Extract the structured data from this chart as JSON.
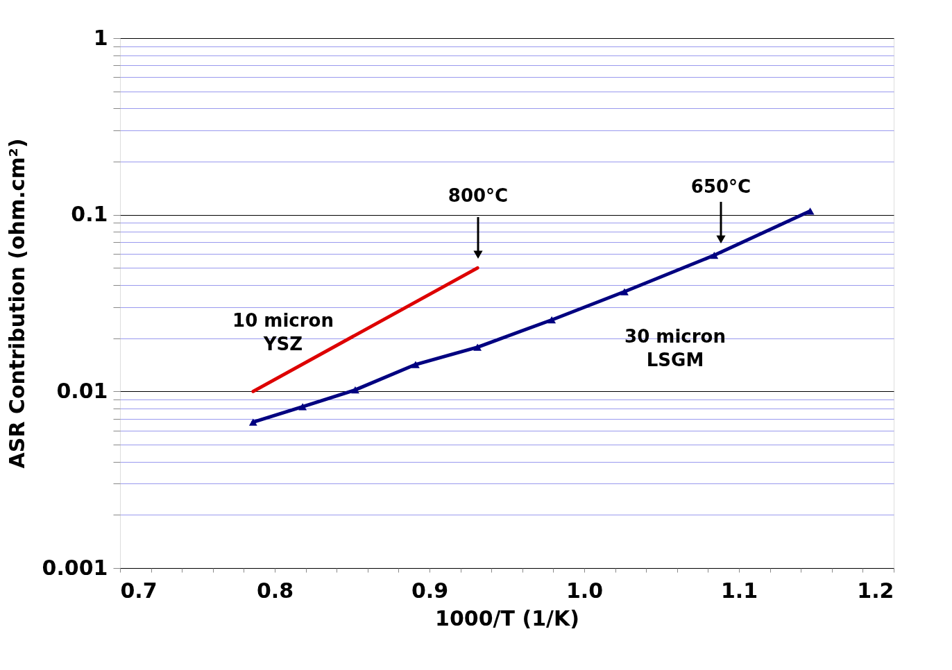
{
  "chart_data": {
    "type": "line",
    "xlabel": "1000/T (1/K)",
    "ylabel": "ASR Contribution (ohm.cm²)",
    "log": "y",
    "grid": "y",
    "legend": false,
    "xlim": [
      0.7,
      1.2
    ],
    "xticks": [
      0.7,
      {
        "value": 0.72,
        "label": null
      },
      {
        "value": 0.74,
        "label": null
      },
      {
        "value": 0.76,
        "label": null
      },
      {
        "value": 0.78,
        "label": null
      },
      0.8,
      {
        "value": 0.82,
        "label": null
      },
      {
        "value": 0.84,
        "label": null
      },
      {
        "value": 0.86,
        "label": null
      },
      {
        "value": 0.88,
        "label": null
      },
      0.9,
      {
        "value": 0.92,
        "label": null
      },
      {
        "value": 0.94,
        "label": null
      },
      {
        "value": 0.96,
        "label": null
      },
      {
        "value": 0.98,
        "label": null
      },
      {
        "value": 1.0,
        "label": "1.0"
      },
      {
        "value": 1.02,
        "label": null
      },
      {
        "value": 1.04,
        "label": null
      },
      {
        "value": 1.06,
        "label": null
      },
      {
        "value": 1.08,
        "label": null
      },
      1.1,
      {
        "value": 1.12,
        "label": null
      },
      {
        "value": 1.14,
        "label": null
      },
      {
        "value": 1.16,
        "label": null
      },
      {
        "value": 1.18,
        "label": null
      },
      1.2
    ],
    "ylim": [
      0.001,
      1
    ],
    "yticks": [
      0.001,
      {
        "value": 0.002,
        "label": null
      },
      {
        "value": 0.003,
        "label": null
      },
      {
        "value": 0.004,
        "label": null
      },
      {
        "value": 0.005,
        "label": null
      },
      {
        "value": 0.006,
        "label": null
      },
      {
        "value": 0.007,
        "label": null
      },
      {
        "value": 0.008,
        "label": null
      },
      {
        "value": 0.009,
        "label": null
      },
      0.01,
      {
        "value": 0.02,
        "label": null
      },
      {
        "value": 0.03,
        "label": null
      },
      {
        "value": 0.04,
        "label": null
      },
      {
        "value": 0.05,
        "label": null
      },
      {
        "value": 0.06,
        "label": null
      },
      {
        "value": 0.07,
        "label": null
      },
      {
        "value": 0.08,
        "label": null
      },
      {
        "value": 0.09,
        "label": null
      },
      0.1,
      {
        "value": 0.2,
        "label": null
      },
      {
        "value": 0.3,
        "label": null
      },
      {
        "value": 0.4,
        "label": null
      },
      {
        "value": 0.5,
        "label": null
      },
      {
        "value": 0.6,
        "label": null
      },
      {
        "value": 0.7,
        "label": null
      },
      {
        "value": 0.8,
        "label": null
      },
      {
        "value": 0.9,
        "label": null
      },
      1
    ],
    "series": [
      {
        "name": "10 micron\nYSZ",
        "color": "#dd0000",
        "marker": "none",
        "x": [
          0.786,
          0.931
        ],
        "values": [
          0.01,
          0.05
        ]
      },
      {
        "name": "30 micron\nLSGM",
        "color": "#000080",
        "marker": "triangle",
        "x": [
          0.786,
          0.818,
          0.852,
          0.891,
          0.931,
          0.979,
          1.026,
          1.084,
          1.146
        ],
        "values": [
          0.0067,
          0.0082,
          0.0102,
          0.0142,
          0.0178,
          0.0254,
          0.0367,
          0.059,
          0.105
        ]
      }
    ],
    "annotations": [
      "800°C",
      "650°C"
    ]
  }
}
